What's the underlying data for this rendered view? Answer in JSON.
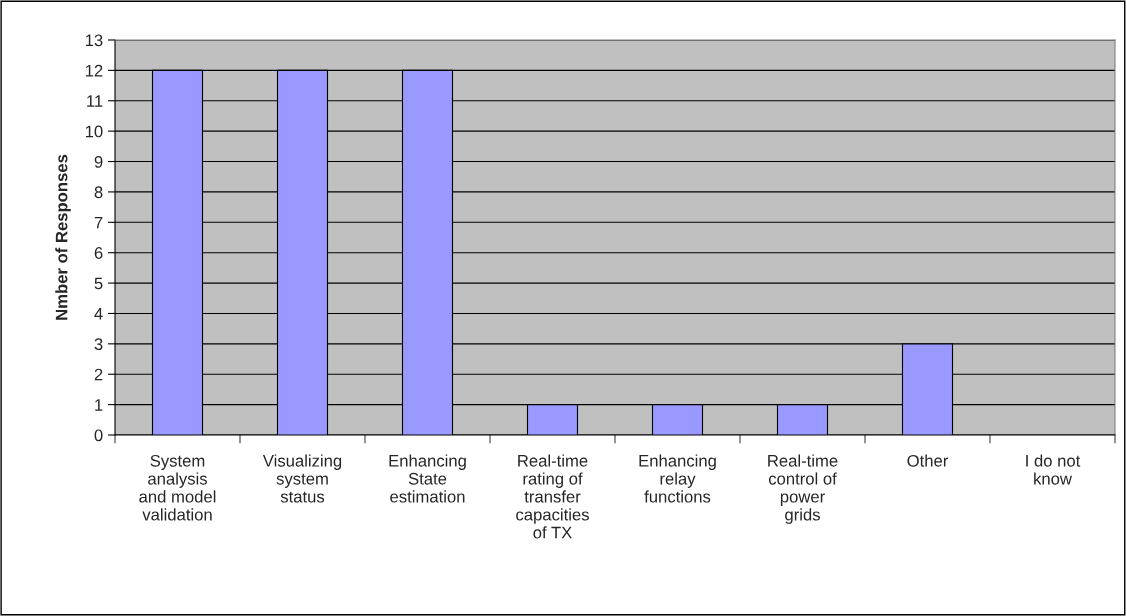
{
  "chart_data": {
    "type": "bar",
    "categories": [
      "System\nanalysis\nand model\nvalidation",
      "Visualizing\nsystem\nstatus",
      "Enhancing\nState\nestimation",
      "Real-time\nrating of\ntransfer\ncapacities\nof TX",
      "Enhancing\nrelay\nfunctions",
      "Real-time\ncontrol of\npower\ngrids",
      "Other",
      "I do not\nknow"
    ],
    "values": [
      12,
      12,
      12,
      1,
      1,
      1,
      3,
      0
    ],
    "color": "#9999ff",
    "ylabel": "Nmber of Responses",
    "ylim": [
      0,
      13
    ],
    "yticks": [
      0,
      1,
      2,
      3,
      4,
      5,
      6,
      7,
      8,
      9,
      10,
      11,
      12,
      13
    ],
    "grid": "y"
  }
}
